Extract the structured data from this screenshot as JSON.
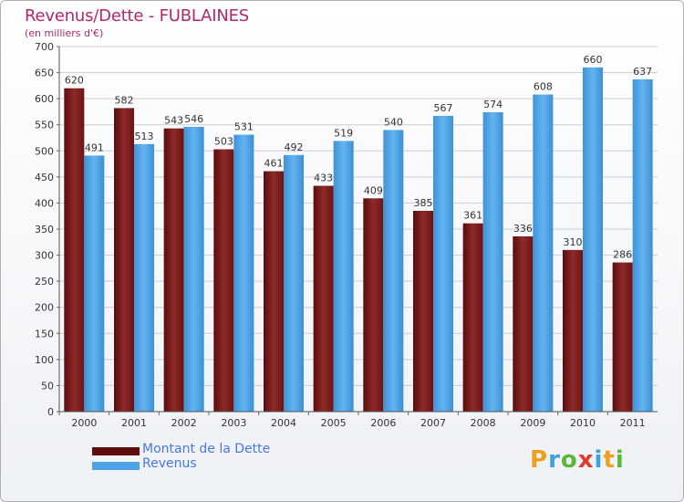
{
  "header": {
    "title": "Revenus/Dette - FUBLAINES",
    "subtitle": "(en milliers d'€)"
  },
  "chart_data": {
    "type": "bar",
    "title": "Revenus/Dette - FUBLAINES",
    "subtitle": "(en milliers d'€)",
    "categories": [
      "2000",
      "2001",
      "2002",
      "2003",
      "2004",
      "2005",
      "2006",
      "2007",
      "2008",
      "2009",
      "2010",
      "2011"
    ],
    "series": [
      {
        "name": "Montant de la Dette",
        "color": "#7a1a1a",
        "values": [
          620,
          582,
          543,
          503,
          461,
          433,
          409,
          385,
          361,
          336,
          310,
          286
        ]
      },
      {
        "name": "Revenus",
        "color": "#4da3e6",
        "values": [
          491,
          513,
          546,
          531,
          492,
          519,
          540,
          567,
          574,
          608,
          660,
          637
        ]
      }
    ],
    "ylim": [
      0,
      700
    ],
    "ytick_step": 50,
    "grid": true,
    "legend_position": "bottom-left"
  },
  "legend": {
    "items": [
      {
        "label": "Montant de la Dette",
        "color": "#5e0d0d"
      },
      {
        "label": "Revenus",
        "color": "#4da3e6"
      }
    ]
  },
  "logo": {
    "letters": [
      "P",
      "r",
      "o",
      "x",
      "i",
      "t",
      "i"
    ]
  }
}
